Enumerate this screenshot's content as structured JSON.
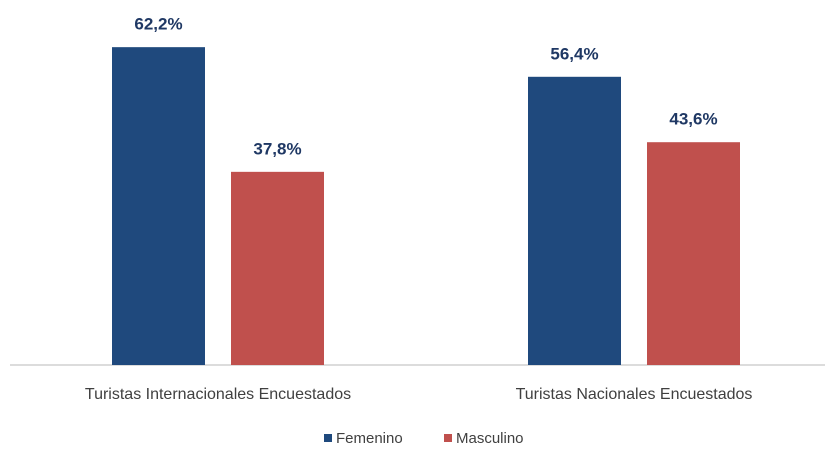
{
  "chart_data": {
    "type": "bar",
    "categories": [
      "Turistas Internacionales Encuestados",
      "Turistas Nacionales Encuestados"
    ],
    "series": [
      {
        "name": "Femenino",
        "color": "#1f497d",
        "values": [
          62.2,
          56.4
        ],
        "value_labels": [
          "62,2%",
          "56,4%"
        ]
      },
      {
        "name": "Masculino",
        "color": "#c0504d",
        "values": [
          37.8,
          43.6
        ],
        "value_labels": [
          "37,8%",
          "43,6%"
        ]
      }
    ]
  }
}
